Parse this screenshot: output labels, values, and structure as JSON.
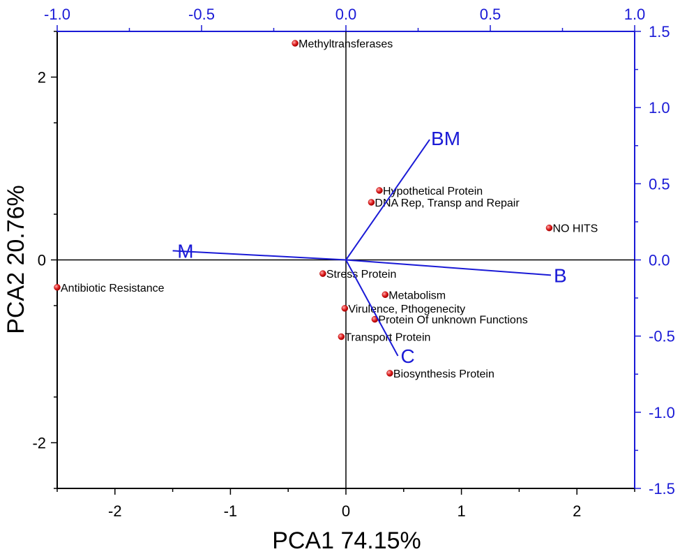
{
  "chart_data": {
    "type": "scatter",
    "subtype": "biplot",
    "xlabel": "PCA1   74.15%",
    "ylabel": "PCA2   20.76%",
    "xlim": [
      -2.5,
      2.5
    ],
    "ylim": [
      -2.5,
      2.5
    ],
    "x_ticks": [
      -2,
      -1,
      0,
      1,
      2
    ],
    "y_ticks": [
      -2,
      0,
      2
    ],
    "top_axis": {
      "lim": [
        -1.0,
        1.0
      ],
      "ticks": [
        -1.0,
        -0.5,
        0.0,
        0.5,
        1.0
      ],
      "labels": [
        "-1.0",
        "-0.5",
        "0.0",
        "0.5",
        "1.0"
      ]
    },
    "right_axis": {
      "lim": [
        -1.5,
        1.5
      ],
      "ticks": [
        1.5,
        1.0,
        0.5,
        0.0,
        -0.5,
        -1.0,
        -1.5
      ],
      "labels": [
        "1.5",
        "1.0",
        "0.5",
        "0.0",
        "-0.5",
        "-1.0",
        "-1.5"
      ]
    },
    "points": [
      {
        "label": "Methyltransferases",
        "x": -0.44,
        "y": 2.37
      },
      {
        "label": "Hypothetical Protein",
        "x": 0.29,
        "y": 0.76
      },
      {
        "label": "DNA Rep, Transp and Repair",
        "x": 0.22,
        "y": 0.63
      },
      {
        "label": "NO HITS",
        "x": 1.76,
        "y": 0.35
      },
      {
        "label": "Stress Protein",
        "x": -0.2,
        "y": -0.15
      },
      {
        "label": "Antibiotic Resistance",
        "x": -2.5,
        "y": -0.3
      },
      {
        "label": "Metabolism",
        "x": 0.34,
        "y": -0.38
      },
      {
        "label": "Virulence, Pthogenecity",
        "x": -0.01,
        "y": -0.53
      },
      {
        "label": "Protein Of unknown Functions",
        "x": 0.25,
        "y": -0.65
      },
      {
        "label": "Transport Protein",
        "x": -0.04,
        "y": -0.84
      },
      {
        "label": "Biosynthesis Protein",
        "x": 0.38,
        "y": -1.24
      }
    ],
    "loadings": [
      {
        "label": "BM",
        "x": 0.29,
        "y": 0.79
      },
      {
        "label": "M",
        "x": -0.6,
        "y": 0.06
      },
      {
        "label": "B",
        "x": 0.71,
        "y": -0.1
      },
      {
        "label": "C",
        "x": 0.18,
        "y": -0.63
      }
    ]
  },
  "colors": {
    "axis_black": "#000000",
    "axis_blue": "#1a1ad6",
    "point": "#e02020"
  }
}
